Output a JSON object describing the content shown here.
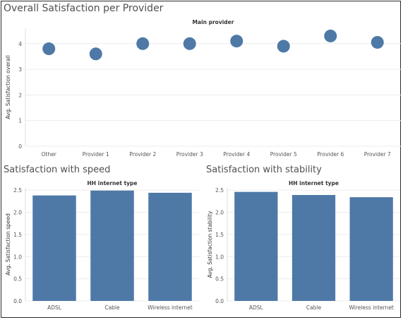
{
  "chart_data": [
    {
      "type": "scatter",
      "title": "Overall Satisfaction per Provider",
      "header": "Main provider",
      "ylabel": "Avg. Satisfaction overall",
      "categories": [
        "Other",
        "Provider 1",
        "Provider 2",
        "Provider 3",
        "Provider 4",
        "Provider 5",
        "Provider 6",
        "Provider 7"
      ],
      "values": [
        3.8,
        3.6,
        4.0,
        4.0,
        4.1,
        3.9,
        4.3,
        4.05
      ],
      "ylim": [
        0,
        4.6
      ],
      "yticks": [
        "0",
        "1",
        "2",
        "3",
        "4"
      ],
      "grid": true,
      "color": "#4e79a7"
    },
    {
      "type": "bar",
      "title": "Satisfaction with speed",
      "header": "HH internet type",
      "ylabel": "Avg. Satisfaction speed",
      "categories": [
        "ADSL",
        "Cable",
        "Wireless internet"
      ],
      "values": [
        2.38,
        2.49,
        2.44
      ],
      "ylim": [
        0,
        2.55
      ],
      "yticks": [
        "0.0",
        "0.5",
        "1.0",
        "1.5",
        "2.0",
        "2.5"
      ],
      "grid": true,
      "color": "#4e79a7"
    },
    {
      "type": "bar",
      "title": "Satisfaction with stability",
      "header": "HH internet type",
      "ylabel": "Avg. Satisfaction stability",
      "categories": [
        "ADSL",
        "Cable",
        "Wireless internet"
      ],
      "values": [
        2.46,
        2.39,
        2.34
      ],
      "ylim": [
        0,
        2.55
      ],
      "yticks": [
        "0.0",
        "0.5",
        "1.0",
        "1.5",
        "2.0",
        "2.5"
      ],
      "grid": true,
      "color": "#4e79a7"
    }
  ]
}
